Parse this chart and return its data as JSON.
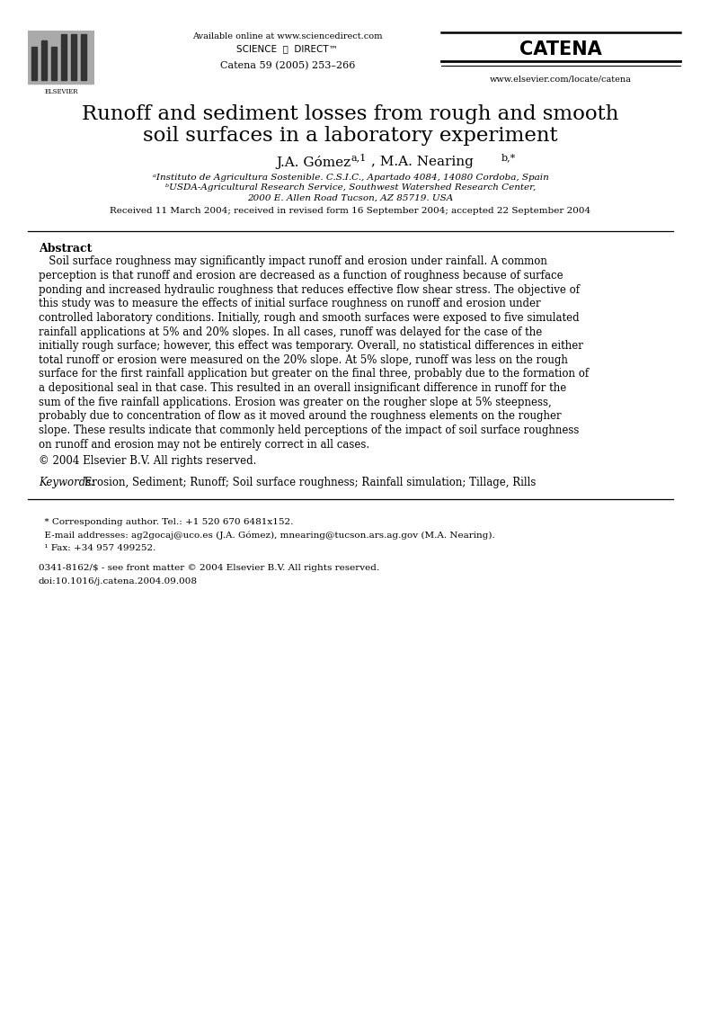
{
  "page_width": 7.8,
  "page_height": 11.33,
  "bg_color": "#ffffff",
  "available_online": "Available online at www.sciencedirect.com",
  "sciencedirect_text": "SCIENCE  ⓓ  DIRECT™",
  "catena_journal": "CATENA",
  "journal_info": "Catena 59 (2005) 253–266",
  "website": "www.elsevier.com/locate/catena",
  "title_line1": "Runoff and sediment losses from rough and smooth",
  "title_line2": "soil surfaces in a laboratory experiment",
  "author_main": "J.A. Gómez",
  "author_super1": "a,1",
  "author_sep": ", M.A. Nearing",
  "author_super2": "b,*",
  "affil1": "ᵃInstituto de Agricultura Sostenible. C.S.I.C., Apartado 4084, 14080 Cordoba, Spain",
  "affil2": "ᵇUSDA-Agricultural Research Service, Southwest Watershed Research Center,",
  "affil3": "2000 E. Allen Road Tucson, AZ 85719. USA",
  "received": "Received 11 March 2004; received in revised form 16 September 2004; accepted 22 September 2004",
  "abstract_title": "Abstract",
  "abstract_lines": [
    "   Soil surface roughness may significantly impact runoff and erosion under rainfall. A common",
    "perception is that runoff and erosion are decreased as a function of roughness because of surface",
    "ponding and increased hydraulic roughness that reduces effective flow shear stress. The objective of",
    "this study was to measure the effects of initial surface roughness on runoff and erosion under",
    "controlled laboratory conditions. Initially, rough and smooth surfaces were exposed to five simulated",
    "rainfall applications at 5% and 20% slopes. In all cases, runoff was delayed for the case of the",
    "initially rough surface; however, this effect was temporary. Overall, no statistical differences in either",
    "total runoff or erosion were measured on the 20% slope. At 5% slope, runoff was less on the rough",
    "surface for the first rainfall application but greater on the final three, probably due to the formation of",
    "a depositional seal in that case. This resulted in an overall insignificant difference in runoff for the",
    "sum of the five rainfall applications. Erosion was greater on the rougher slope at 5% steepness,",
    "probably due to concentration of flow as it moved around the roughness elements on the rougher",
    "slope. These results indicate that commonly held perceptions of the impact of soil surface roughness",
    "on runoff and erosion may not be entirely correct in all cases."
  ],
  "copyright": "© 2004 Elsevier B.V. All rights reserved.",
  "keywords_label": "Keywords:",
  "keywords_text": " Erosion, Sediment; Runoff; Soil surface roughness; Rainfall simulation; Tillage, Rills",
  "footer_note1": "  * Corresponding author. Tel.: +1 520 670 6481x152.",
  "footer_note2": "  E-mail addresses: ag2gocaj@uco.es (J.A. Gómez), mnearing@tucson.ars.ag.gov (M.A. Nearing).",
  "footer_note3": "  ¹ Fax: +34 957 499252.",
  "footer_issn": "0341-8162/$ - see front matter © 2004 Elsevier B.V. All rights reserved.",
  "footer_doi": "doi:10.1016/j.catena.2004.09.008"
}
